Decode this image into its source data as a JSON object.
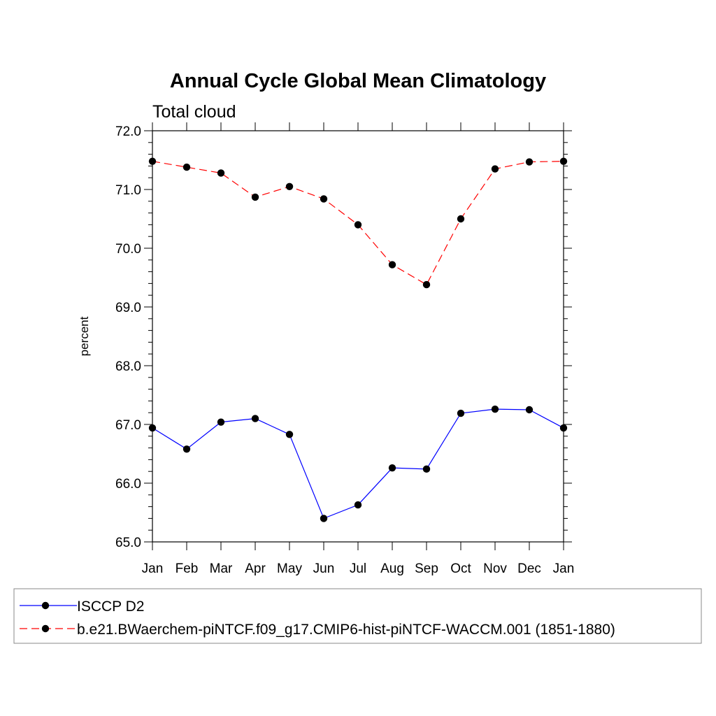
{
  "chart_data": {
    "type": "line",
    "title": "Annual Cycle Global Mean Climatology",
    "subtitle": "Total cloud",
    "xlabel": "",
    "ylabel": "percent",
    "categories": [
      "Jan",
      "Feb",
      "Mar",
      "Apr",
      "May",
      "Jun",
      "Jul",
      "Aug",
      "Sep",
      "Oct",
      "Nov",
      "Dec",
      "Jan"
    ],
    "ylim": [
      65.0,
      72.0
    ],
    "yticks": [
      "65.0",
      "66.0",
      "67.0",
      "68.0",
      "69.0",
      "70.0",
      "71.0",
      "72.0"
    ],
    "grid": false,
    "legend_position": "bottom",
    "series": [
      {
        "name": "ISCCP D2",
        "color": "#0000ff",
        "dash": "solid",
        "values": [
          66.94,
          66.58,
          67.04,
          67.1,
          66.83,
          65.4,
          65.63,
          66.26,
          66.24,
          67.19,
          67.26,
          67.25,
          66.94
        ]
      },
      {
        "name": "b.e21.BWaerchem-piNTCF.f09_g17.CMIP6-hist-piNTCF-WACCM.001 (1851-1880)",
        "color": "#ff0000",
        "dash": "dashed",
        "values": [
          71.48,
          71.38,
          71.28,
          70.87,
          71.05,
          70.84,
          70.4,
          69.72,
          69.38,
          70.5,
          71.35,
          71.47,
          71.48
        ]
      }
    ]
  }
}
